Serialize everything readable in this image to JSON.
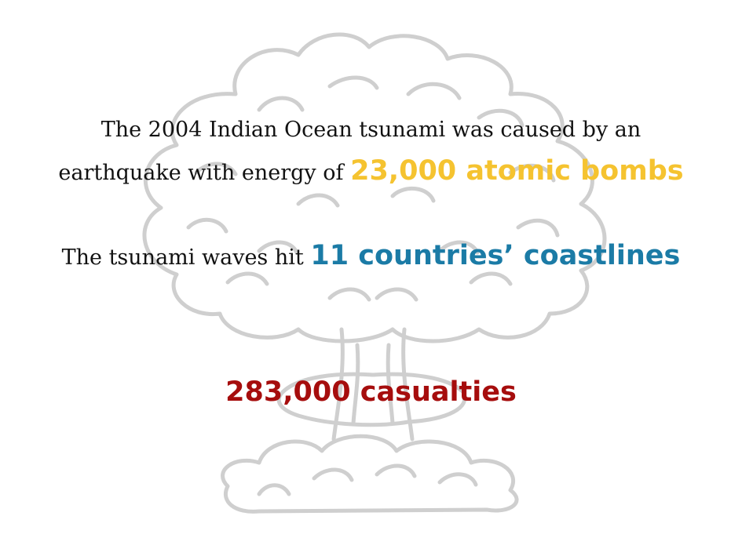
{
  "colors": {
    "highlight_yellow": "#f5c330",
    "highlight_blue": "#1b7ba6",
    "highlight_red": "#a60d0d",
    "cloud_outline": "#cfcfcf"
  },
  "background": {
    "icon": "mushroom-cloud-icon"
  },
  "fact1": {
    "text_a": "The 2004 Indian Ocean tsunami was caused by an",
    "text_b": "earthquake with energy of",
    "highlight": "23,000 atomic bombs"
  },
  "fact2": {
    "text": "The tsunami waves hit",
    "highlight": "11 countries’ coastlines"
  },
  "fact3": {
    "highlight": "283,000 casualties"
  }
}
